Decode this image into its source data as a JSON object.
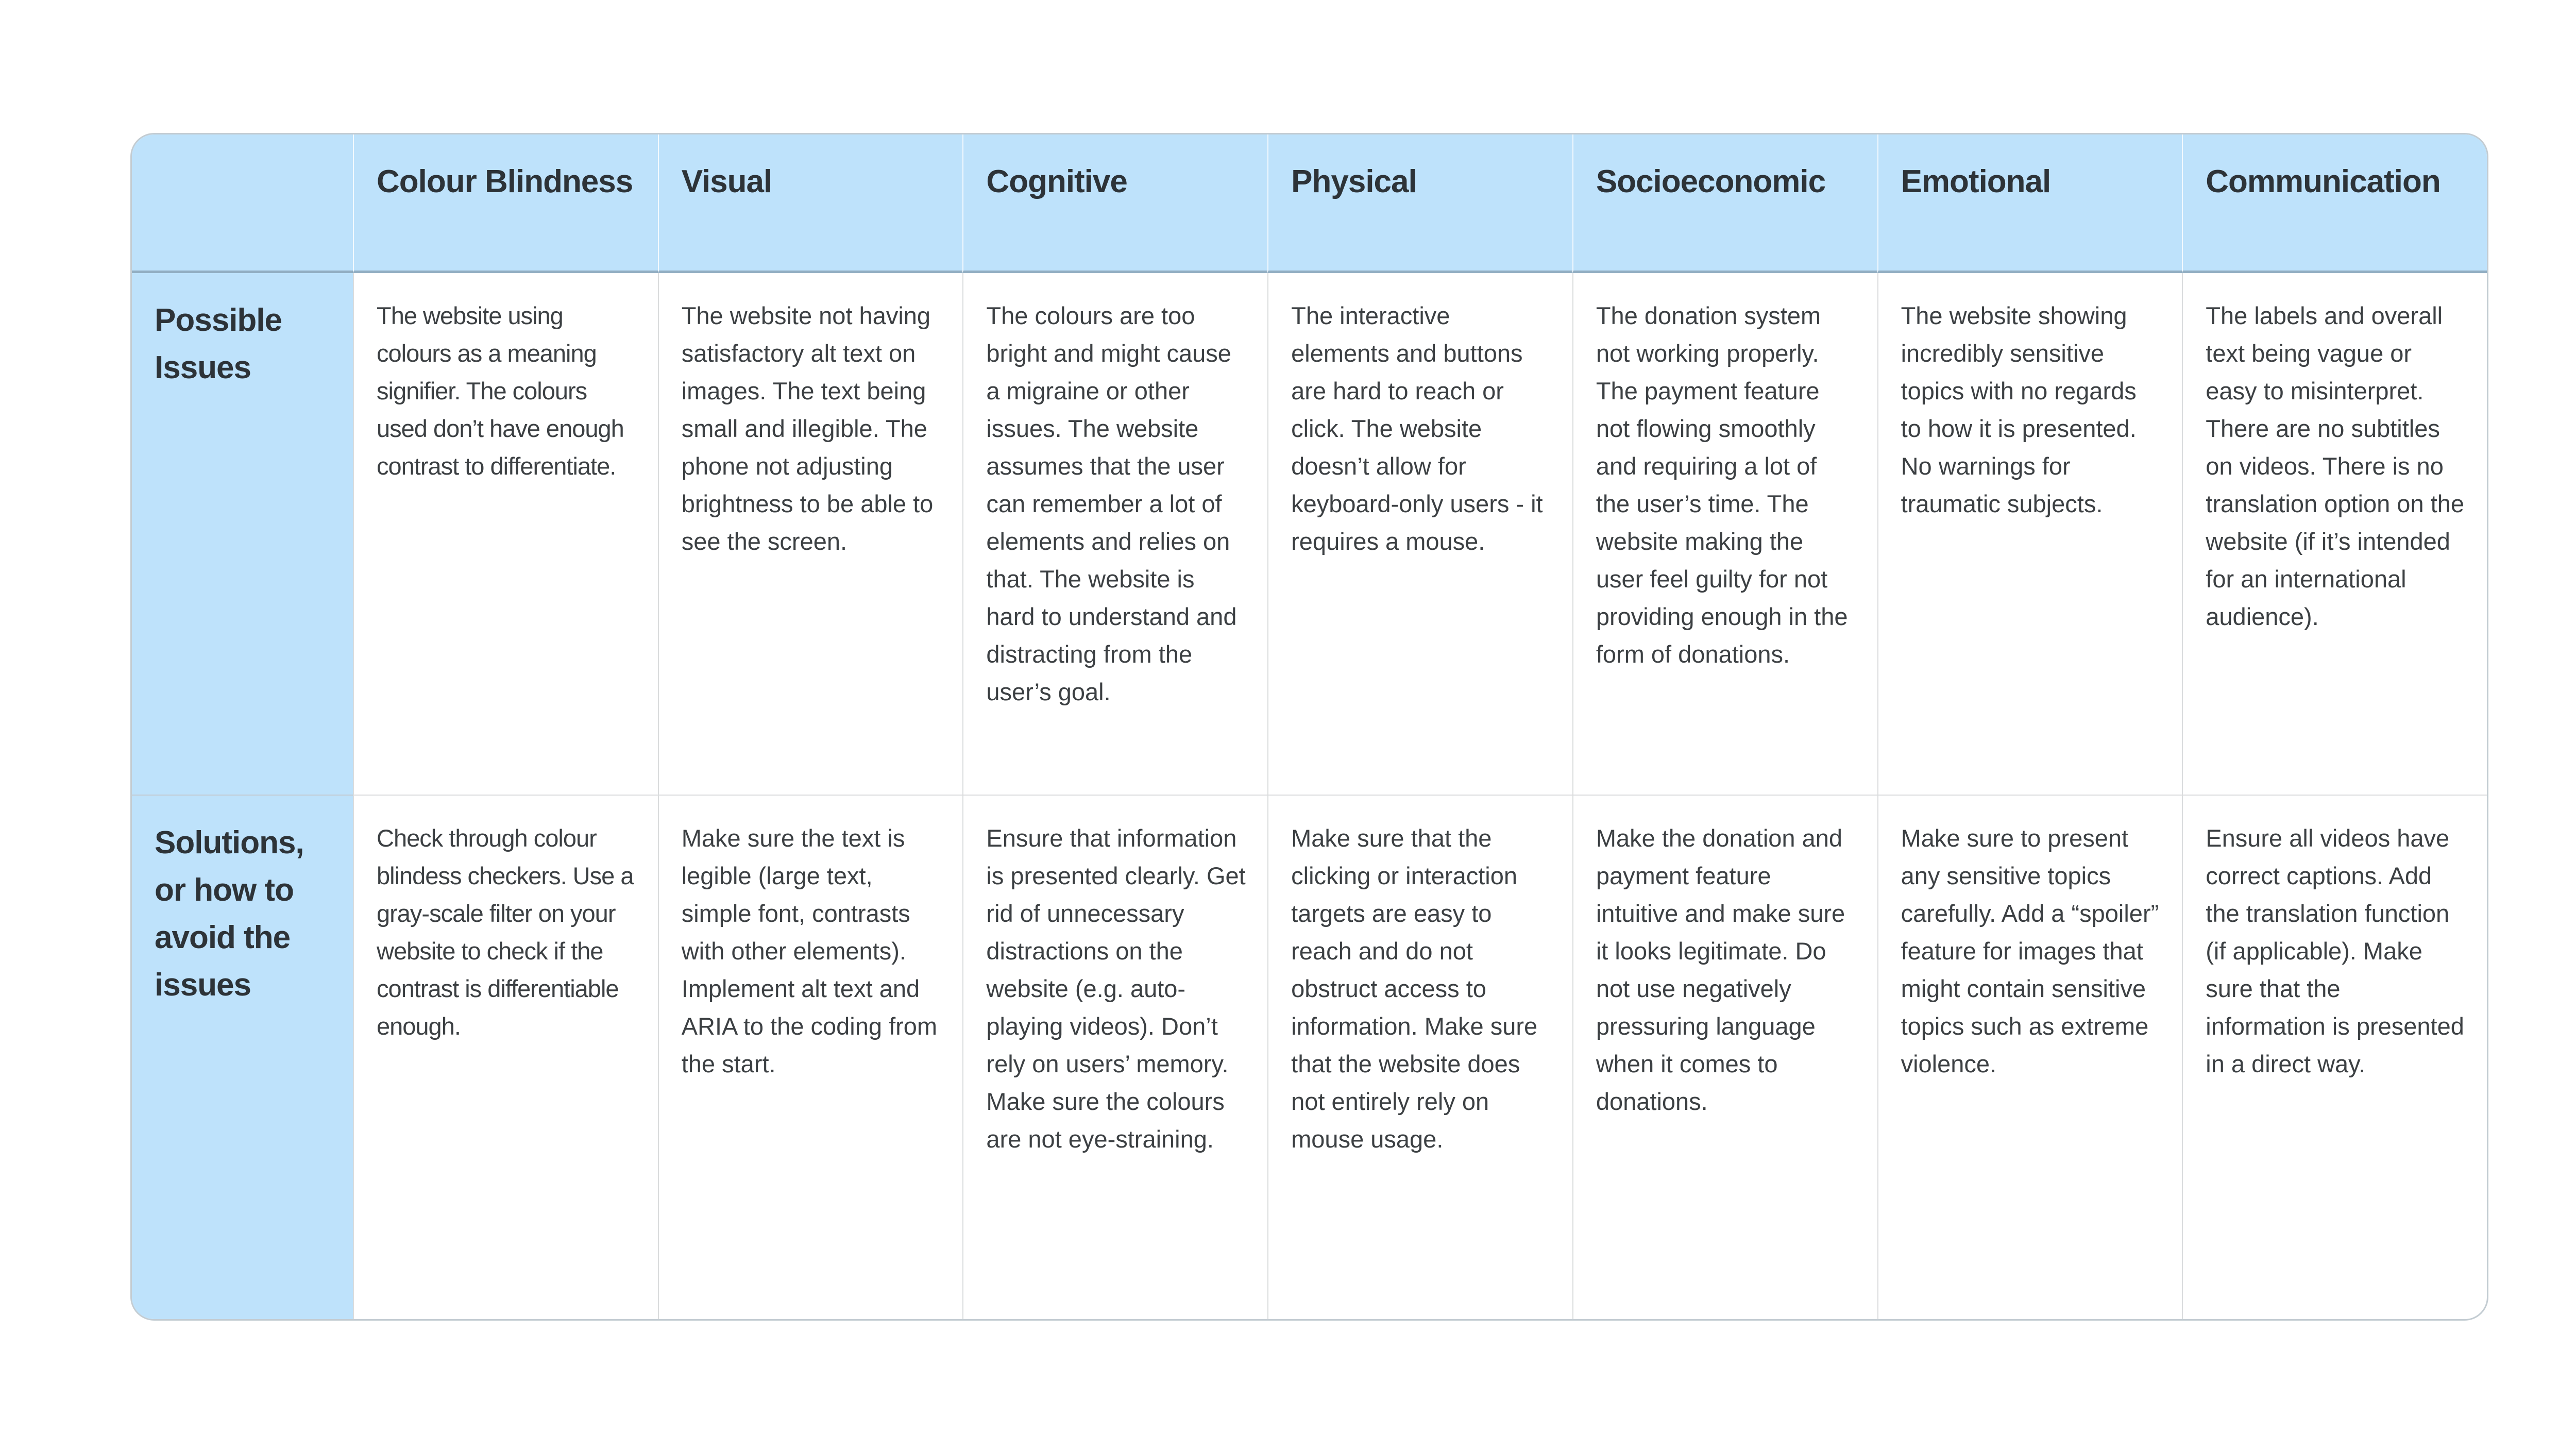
{
  "table": {
    "corner": "",
    "columns": [
      "Colour Blindness",
      "Visual",
      "Cognitive",
      "Physical",
      "Socioeconomic",
      "Emotional",
      "Communication"
    ],
    "rows": [
      {
        "label": "Possible Issues",
        "cells": [
          "The website using colours as a meaning signifier. The colours used don’t have enough contrast to differentiate.",
          "The website not having satisfactory alt text on images. The text being small and illegible. The phone not adjusting brightness to be able to see the screen.",
          "The colours are too bright and might cause a migraine or other issues. The website assumes that the user can remember a lot of elements and relies on that. The website is hard to understand and distracting from the user’s goal.",
          "The interactive elements and buttons are hard to reach or click. The website doesn’t allow for keyboard-only users - it requires a mouse.",
          "The donation system not working properly. The payment feature not flowing smoothly and requiring a lot of the user’s time. The website making the user feel guilty for not providing enough in the form of donations.",
          "The website showing incredibly sensitive topics with no regards to how it is presented. No warnings for traumatic subjects.",
          "The labels and overall text being vague or easy to misinterpret. There are no subtitles on videos. There is no translation option on the website (if it’s intended for an international audience)."
        ]
      },
      {
        "label": "Solutions, or how to avoid the issues",
        "cells": [
          "Check through colour blindess checkers. Use a gray-scale filter on your website to check if the contrast is differentiable enough.",
          "Make sure the text is legible (large text, simple font, contrasts with other elements). Implement alt text and ARIA to the coding from the start.",
          "Ensure that information is presented clearly. Get rid of unnecessary distractions on the website (e.g. auto-playing videos). Don’t rely on users’ memory. Make sure the colours are not eye-straining.",
          "Make sure that the clicking or interaction targets are easy to reach and do not obstruct access to information. Make sure that the website does not entirely rely on mouse usage.",
          "Make the donation and payment feature intuitive and make sure it looks legitimate. Do not use negatively pressuring language when it comes to donations.",
          "Make sure to present any sensitive topics carefully. Add a “spoiler” feature for images that might contain sensitive topics such as extreme violence.",
          "Ensure all videos have correct captions. Add the translation function (if applicable). Make sure that the information is presented in a direct way."
        ]
      }
    ],
    "colors": {
      "header_bg": "#bee2fb",
      "header_text": "#2d3338",
      "body_text": "#3c4043",
      "header_divider": "#92aec2",
      "cell_border": "#dadcdd",
      "outer_border": "#c3ccd2"
    }
  }
}
